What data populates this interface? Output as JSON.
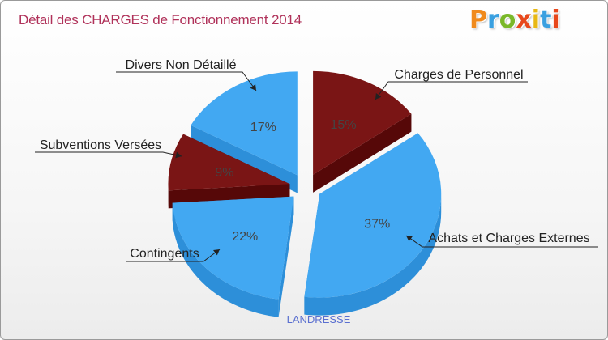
{
  "header": {
    "title": "Détail des CHARGES de Fonctionnement 2014",
    "logo_letters": [
      "P",
      "r",
      "o",
      "x",
      "i",
      "t",
      "i"
    ],
    "logo_colors": [
      "#f08a1c",
      "#3aa0e0",
      "#7ab829",
      "#e8481c",
      "#e8b814",
      "#3aa0e0",
      "#e8481c"
    ]
  },
  "colors": {
    "blue_top": "#42a8f2",
    "blue_side": "#2d8fd9",
    "red_top": "#7a1515",
    "red_side": "#560808",
    "title": "#b0325a",
    "location": "#5a6fd0"
  },
  "chart_data": {
    "type": "pie",
    "title": "Détail des CHARGES de Fonctionnement 2014",
    "location": "LANDRESSE",
    "slices": [
      {
        "label": "Charges de Personnel",
        "percent": 15,
        "value_label": "15%",
        "color": "red"
      },
      {
        "label": "Achats et Charges Externes",
        "percent": 37,
        "value_label": "37%",
        "color": "blue"
      },
      {
        "label": "Contingents",
        "percent": 22,
        "value_label": "22%",
        "color": "blue"
      },
      {
        "label": "Subventions Versées",
        "percent": 9,
        "value_label": "9%",
        "color": "red"
      },
      {
        "label": "Divers Non Détaillé",
        "percent": 17,
        "value_label": "17%",
        "color": "blue"
      }
    ]
  }
}
